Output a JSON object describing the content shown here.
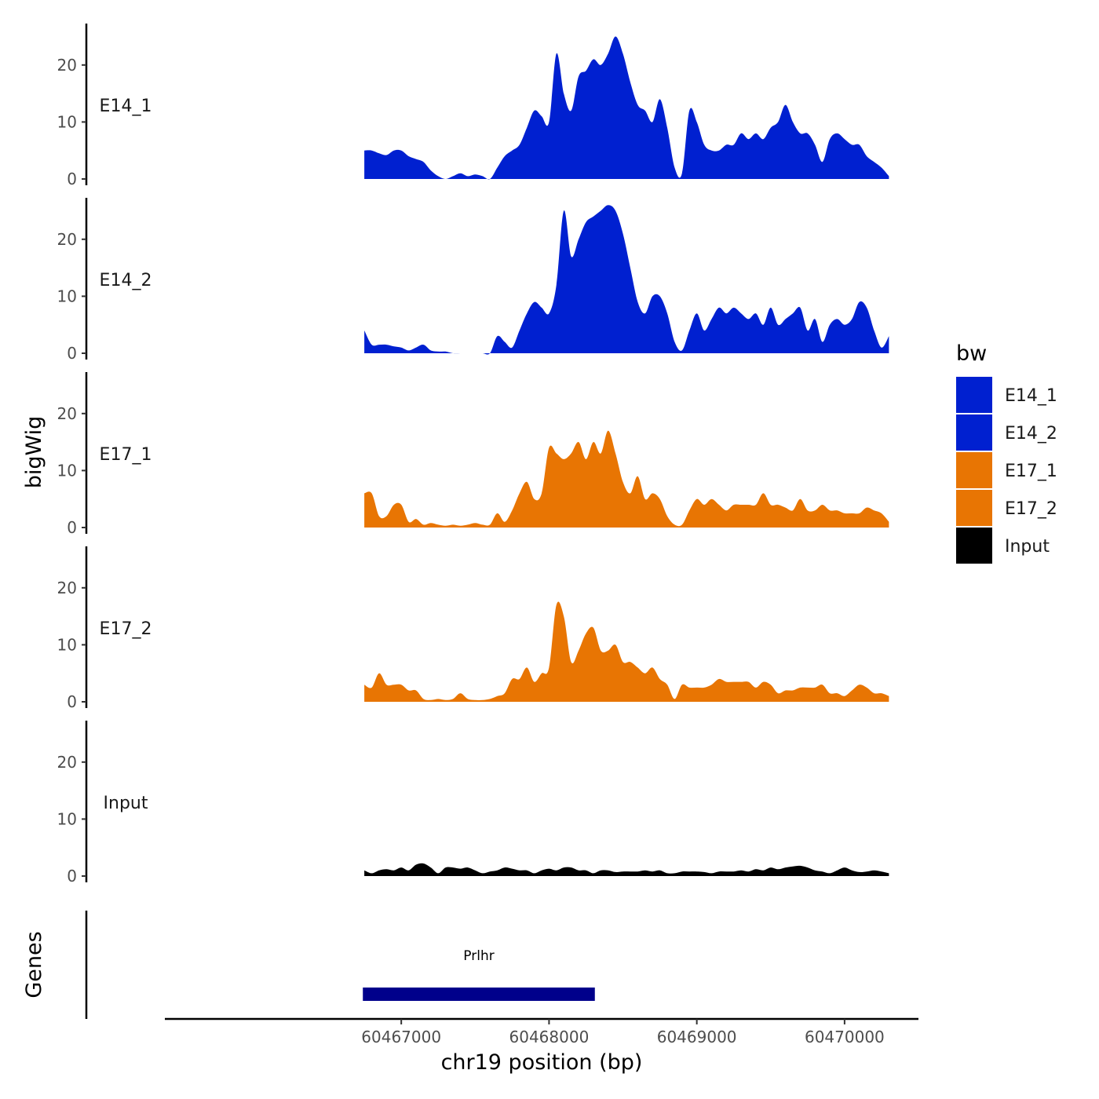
{
  "chart_data": {
    "type": "area",
    "xlabel": "chr19 position (bp)",
    "ylabel": "bigWig",
    "genes_label": "Genes",
    "xlim": [
      60465400,
      60470500
    ],
    "ylim": [
      0,
      27
    ],
    "y_ticks": [
      0,
      10,
      20
    ],
    "y_tick_labels": [
      "0",
      "10",
      "20"
    ],
    "x_ticks": [
      60467000,
      60468000,
      60469000,
      60470000
    ],
    "x_tick_labels": [
      "60467000",
      "60468000",
      "60469000",
      "60470000"
    ],
    "legend": {
      "title": "bw",
      "position": "right",
      "entries": [
        {
          "label": "E14_1",
          "color": "#0020d0"
        },
        {
          "label": "E14_2",
          "color": "#0020d0"
        },
        {
          "label": "E17_1",
          "color": "#e87503"
        },
        {
          "label": "E17_2",
          "color": "#e87503"
        },
        {
          "label": "Input",
          "color": "#000000"
        }
      ]
    },
    "series": [
      {
        "name": "E14_1",
        "color": "#0020d0",
        "x": [
          60466750,
          60466800,
          60466850,
          60466900,
          60466950,
          60467000,
          60467050,
          60467100,
          60467150,
          60467200,
          60467250,
          60467300,
          60467350,
          60467400,
          60467450,
          60467500,
          60467550,
          60467600,
          60467650,
          60467700,
          60467750,
          60467800,
          60467850,
          60467900,
          60467950,
          60468000,
          60468050,
          60468100,
          60468150,
          60468200,
          60468250,
          60468300,
          60468350,
          60468400,
          60468450,
          60468500,
          60468550,
          60468600,
          60468650,
          60468700,
          60468750,
          60468800,
          60468850,
          60468900,
          60468950,
          60469000,
          60469050,
          60469100,
          60469150,
          60469200,
          60469250,
          60469300,
          60469350,
          60469400,
          60469450,
          60469500,
          60469550,
          60469600,
          60469650,
          60469700,
          60469750,
          60469800,
          60469850,
          60469900,
          60469950,
          60470000,
          60470050,
          60470100,
          60470150,
          60470200,
          60470250,
          60470300
        ],
        "values": [
          5,
          5,
          4.5,
          4.2,
          5,
          5,
          4,
          3.5,
          3,
          1.5,
          0.5,
          0,
          0.5,
          1,
          0.5,
          0.8,
          0.5,
          0,
          2,
          4,
          5,
          6,
          9,
          12,
          11,
          10,
          22,
          15,
          12,
          18,
          19,
          21,
          20,
          22,
          25,
          22,
          17,
          13,
          12,
          10,
          14,
          9,
          2,
          1,
          12,
          10,
          6,
          5,
          5,
          6,
          6,
          8,
          7,
          8,
          7,
          9,
          10,
          13,
          10,
          8,
          8,
          6,
          3,
          7,
          8,
          7,
          6,
          6,
          4,
          3,
          2,
          0.5
        ]
      },
      {
        "name": "E14_2",
        "color": "#0020d0",
        "x": [
          60466750,
          60466800,
          60466850,
          60466900,
          60466950,
          60467000,
          60467050,
          60467100,
          60467150,
          60467200,
          60467250,
          60467300,
          60467350,
          60467400,
          60467450,
          60467500,
          60467550,
          60467600,
          60467650,
          60467700,
          60467750,
          60467800,
          60467850,
          60467900,
          60467950,
          60468000,
          60468050,
          60468100,
          60468150,
          60468200,
          60468250,
          60468300,
          60468350,
          60468400,
          60468450,
          60468500,
          60468550,
          60468600,
          60468650,
          60468700,
          60468750,
          60468800,
          60468850,
          60468900,
          60468950,
          60469000,
          60469050,
          60469100,
          60469150,
          60469200,
          60469250,
          60469300,
          60469350,
          60469400,
          60469450,
          60469500,
          60469550,
          60469600,
          60469650,
          60469700,
          60469750,
          60469800,
          60469850,
          60469900,
          60469950,
          60470000,
          60470050,
          60470100,
          60470150,
          60470200,
          60470250,
          60470300
        ],
        "values": [
          4,
          1.5,
          1.5,
          1.5,
          1.2,
          1,
          0.5,
          1,
          1.5,
          0.5,
          0.3,
          0.3,
          0,
          0,
          0,
          0,
          0,
          0,
          3,
          2,
          1,
          4,
          7,
          9,
          8,
          7,
          12,
          25,
          17,
          20,
          23,
          24,
          25,
          26,
          25,
          21,
          15,
          9,
          7,
          10,
          10,
          7,
          2,
          0.5,
          4,
          7,
          4,
          6,
          8,
          7,
          8,
          7,
          6,
          7,
          5,
          8,
          5,
          6,
          7,
          8,
          4,
          6,
          2,
          5,
          6,
          5,
          6,
          9,
          8,
          4,
          1,
          3
        ]
      },
      {
        "name": "E17_1",
        "color": "#e87503",
        "x": [
          60466750,
          60466800,
          60466850,
          60466900,
          60466950,
          60467000,
          60467050,
          60467100,
          60467150,
          60467200,
          60467250,
          60467300,
          60467350,
          60467400,
          60467450,
          60467500,
          60467550,
          60467600,
          60467650,
          60467700,
          60467750,
          60467800,
          60467850,
          60467900,
          60467950,
          60468000,
          60468050,
          60468100,
          60468150,
          60468200,
          60468250,
          60468300,
          60468350,
          60468400,
          60468450,
          60468500,
          60468550,
          60468600,
          60468650,
          60468700,
          60468750,
          60468800,
          60468850,
          60468900,
          60468950,
          60469000,
          60469050,
          60469100,
          60469150,
          60469200,
          60469250,
          60469300,
          60469350,
          60469400,
          60469450,
          60469500,
          60469550,
          60469600,
          60469650,
          60469700,
          60469750,
          60469800,
          60469850,
          60469900,
          60469950,
          60470000,
          60470050,
          60470100,
          60470150,
          60470200,
          60470250,
          60470300
        ],
        "values": [
          6,
          6,
          2,
          2,
          4,
          4,
          1,
          1.5,
          0.5,
          0.8,
          0.5,
          0.3,
          0.5,
          0.3,
          0.5,
          0.8,
          0.5,
          0.5,
          2.5,
          1,
          3,
          6,
          8,
          5,
          6,
          14,
          13,
          12,
          13,
          15,
          12,
          15,
          13,
          17,
          13,
          8,
          6,
          9,
          5,
          6,
          5,
          2,
          0.5,
          0.5,
          3,
          5,
          4,
          5,
          4,
          3,
          4,
          4,
          4,
          4,
          6,
          4,
          4,
          3.5,
          3,
          5,
          3,
          3,
          4,
          3,
          3,
          2.5,
          2.5,
          2.5,
          3.5,
          3,
          2.5,
          1
        ]
      },
      {
        "name": "E17_2",
        "color": "#e87503",
        "x": [
          60466750,
          60466800,
          60466850,
          60466900,
          60466950,
          60467000,
          60467050,
          60467100,
          60467150,
          60467200,
          60467250,
          60467300,
          60467350,
          60467400,
          60467450,
          60467500,
          60467550,
          60467600,
          60467650,
          60467700,
          60467750,
          60467800,
          60467850,
          60467900,
          60467950,
          60468000,
          60468050,
          60468100,
          60468150,
          60468200,
          60468250,
          60468300,
          60468350,
          60468400,
          60468450,
          60468500,
          60468550,
          60468600,
          60468650,
          60468700,
          60468750,
          60468800,
          60468850,
          60468900,
          60468950,
          60469000,
          60469050,
          60469100,
          60469150,
          60469200,
          60469250,
          60469300,
          60469350,
          60469400,
          60469450,
          60469500,
          60469550,
          60469600,
          60469650,
          60469700,
          60469750,
          60469800,
          60469850,
          60469900,
          60469950,
          60470000,
          60470050,
          60470100,
          60470150,
          60470200,
          60470250,
          60470300
        ],
        "values": [
          3,
          2.5,
          5,
          3,
          3,
          3,
          2,
          2,
          0.5,
          0.3,
          0.5,
          0.3,
          0.5,
          1.5,
          0.5,
          0.3,
          0.3,
          0.5,
          1,
          1.5,
          4,
          4,
          6,
          3.5,
          5,
          6,
          17,
          15,
          7,
          9,
          12,
          13,
          9,
          9,
          10,
          7,
          7,
          6,
          5,
          6,
          4,
          3,
          0.5,
          3,
          2.5,
          2.5,
          2.5,
          3,
          4,
          3.5,
          3.5,
          3.5,
          3.5,
          2.5,
          3.5,
          3,
          1.5,
          2,
          2,
          2.5,
          2.5,
          2.5,
          3,
          1.5,
          1.5,
          1,
          2,
          3,
          2.5,
          1.5,
          1.5,
          1
        ]
      },
      {
        "name": "Input",
        "color": "#000000",
        "x": [
          60466750,
          60466800,
          60466850,
          60466900,
          60466950,
          60467000,
          60467050,
          60467100,
          60467150,
          60467200,
          60467250,
          60467300,
          60467350,
          60467400,
          60467450,
          60467500,
          60467550,
          60467600,
          60467650,
          60467700,
          60467750,
          60467800,
          60467850,
          60467900,
          60467950,
          60468000,
          60468050,
          60468100,
          60468150,
          60468200,
          60468250,
          60468300,
          60468350,
          60468400,
          60468450,
          60468500,
          60468550,
          60468600,
          60468650,
          60468700,
          60468750,
          60468800,
          60468850,
          60468900,
          60468950,
          60469000,
          60469050,
          60469100,
          60469150,
          60469200,
          60469250,
          60469300,
          60469350,
          60469400,
          60469450,
          60469500,
          60469550,
          60469600,
          60469650,
          60469700,
          60469750,
          60469800,
          60469850,
          60469900,
          60469950,
          60470000,
          60470050,
          60470100,
          60470150,
          60470200,
          60470250,
          60470300
        ],
        "values": [
          1,
          0.5,
          1,
          1.2,
          1,
          1.5,
          1,
          2,
          2.2,
          1.5,
          0.5,
          1.5,
          1.5,
          1.3,
          1.5,
          1,
          0.5,
          0.8,
          1,
          1.5,
          1.3,
          1,
          1,
          0.5,
          1,
          1.3,
          1,
          1.5,
          1.5,
          1,
          1,
          0.5,
          1,
          1,
          0.7,
          0.8,
          0.8,
          0.8,
          1,
          0.8,
          1,
          0.5,
          0.5,
          0.8,
          0.8,
          0.8,
          0.7,
          0.5,
          0.8,
          0.8,
          0.8,
          1,
          0.8,
          1.2,
          1,
          1.5,
          1.2,
          1.5,
          1.7,
          1.8,
          1.5,
          1,
          0.8,
          0.5,
          1,
          1.5,
          1,
          0.7,
          0.8,
          1,
          0.8,
          0.5
        ]
      }
    ],
    "genes": [
      {
        "name": "Prlhr",
        "start": 60466740,
        "end": 60468310,
        "color": "#00008b"
      }
    ]
  }
}
